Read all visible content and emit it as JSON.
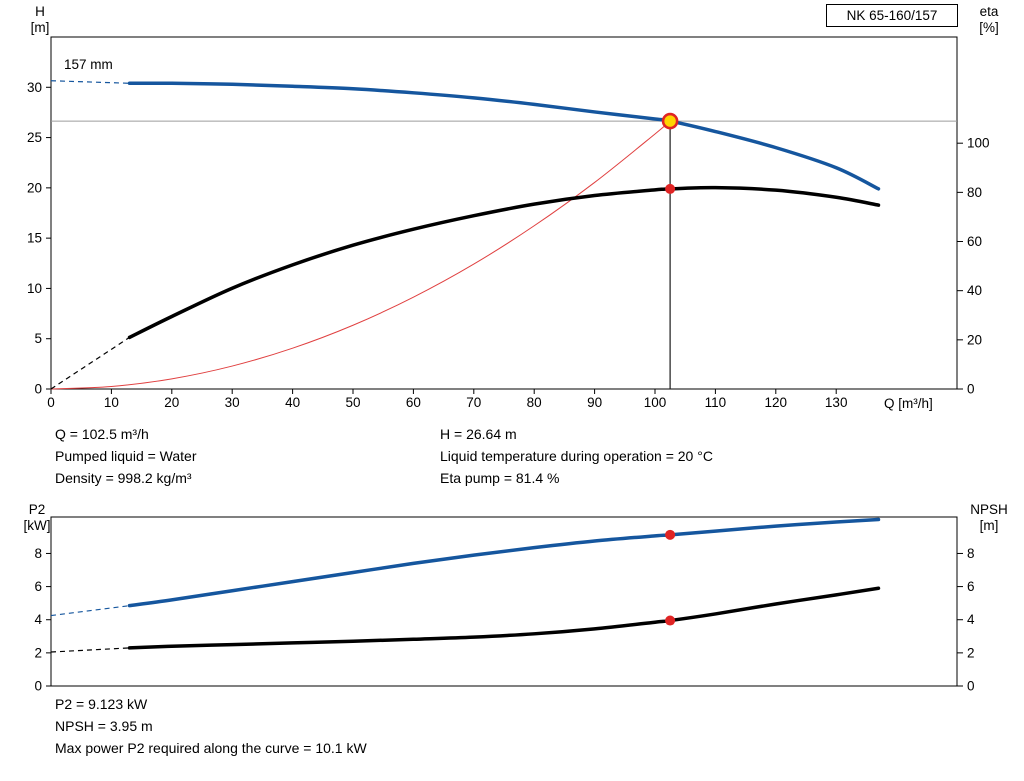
{
  "colors": {
    "pump_blue": "#15569e",
    "curve_black": "#000000",
    "system_red": "#e04040",
    "duty_fill": "#ffd400",
    "duty_ring": "#e02424",
    "dot_red": "#e02424",
    "guide_gray": "#9c9c9c",
    "guide_dark": "#1a1a1a"
  },
  "chart_data": [
    {
      "type": "line",
      "title": "NK 65-160/157",
      "curve_label": "157 mm",
      "x_label": "Q [m³/h]",
      "corner_left": [
        "H",
        "[m]"
      ],
      "corner_right": [
        "eta",
        "[%]"
      ],
      "x_axis": {
        "range": [
          0,
          150
        ],
        "ticks": [
          0,
          10,
          20,
          30,
          40,
          50,
          60,
          70,
          80,
          90,
          100,
          110,
          120,
          130
        ]
      },
      "y_left": {
        "label": "H [m]",
        "range": [
          0,
          35
        ],
        "ticks": [
          0,
          5,
          10,
          15,
          20,
          25,
          30
        ]
      },
      "y_right": {
        "label": "eta [%]",
        "range": [
          0,
          143.2
        ],
        "ticks": [
          0,
          20,
          40,
          60,
          80,
          100
        ]
      },
      "series": [
        {
          "name": "system-curve",
          "axis": "left",
          "color": "#e04040",
          "width": 1,
          "points": [
            [
              0,
              0
            ],
            [
              10,
              0.25
            ],
            [
              20,
              1.01
            ],
            [
              30,
              2.28
            ],
            [
              40,
              4.06
            ],
            [
              50,
              6.34
            ],
            [
              60,
              9.13
            ],
            [
              70,
              12.42
            ],
            [
              80,
              16.23
            ],
            [
              90,
              20.54
            ],
            [
              100,
              25.36
            ],
            [
              102.5,
              26.64
            ]
          ]
        },
        {
          "name": "efficiency-curve",
          "axis": "right",
          "color": "#000000",
          "width": 3.5,
          "dashed_lead": [
            [
              0,
              0
            ],
            [
              13,
              21
            ]
          ],
          "points": [
            [
              13,
              21
            ],
            [
              20,
              29.5
            ],
            [
              30,
              41
            ],
            [
              40,
              50.5
            ],
            [
              50,
              58.5
            ],
            [
              60,
              65
            ],
            [
              70,
              70.5
            ],
            [
              80,
              75.2
            ],
            [
              90,
              78.7
            ],
            [
              100,
              81.0
            ],
            [
              102.5,
              81.4
            ],
            [
              110,
              81.9
            ],
            [
              120,
              80.9
            ],
            [
              130,
              78.0
            ],
            [
              137,
              74.8
            ]
          ]
        },
        {
          "name": "pump-curve-157mm",
          "axis": "left",
          "color": "#15569e",
          "width": 3.5,
          "dashed_lead": [
            [
              0,
              30.65
            ],
            [
              13,
              30.4
            ]
          ],
          "points": [
            [
              13,
              30.4
            ],
            [
              20,
              30.4
            ],
            [
              30,
              30.3
            ],
            [
              40,
              30.1
            ],
            [
              50,
              29.85
            ],
            [
              60,
              29.45
            ],
            [
              70,
              28.95
            ],
            [
              80,
              28.3
            ],
            [
              90,
              27.55
            ],
            [
              100,
              26.85
            ],
            [
              102.5,
              26.64
            ],
            [
              110,
              25.6
            ],
            [
              120,
              24.0
            ],
            [
              130,
              22.0
            ],
            [
              137,
              19.9
            ]
          ]
        }
      ],
      "guides": {
        "v_x": 102.5,
        "v_top": 26.64,
        "h_y": 26.64,
        "h_axis": "left"
      },
      "markers": [
        {
          "name": "duty-point-marker",
          "axis": "left",
          "x": 102.5,
          "y": 26.64,
          "style": "duty"
        },
        {
          "name": "eta-duty-marker",
          "axis": "right",
          "x": 102.5,
          "y": 81.4,
          "style": "dot"
        }
      ],
      "duty_point": {
        "q_m3h": 102.5,
        "h_m": 26.64,
        "eta_pct": 81.4
      }
    },
    {
      "type": "line",
      "corner_left": [
        "P2",
        "[kW]"
      ],
      "corner_right": [
        "NPSH",
        "[m]"
      ],
      "x_axis": {
        "range": [
          0,
          150
        ],
        "ticks": []
      },
      "y_left": {
        "label": "P2 [kW]",
        "range": [
          0,
          10.2
        ],
        "ticks": [
          0,
          2,
          4,
          6,
          8
        ]
      },
      "y_right": {
        "label": "NPSH [m]",
        "range": [
          0,
          10.2
        ],
        "ticks": [
          0,
          2,
          4,
          6,
          8
        ]
      },
      "series": [
        {
          "name": "p2-curve",
          "axis": "left",
          "color": "#15569e",
          "width": 3.5,
          "dashed_lead": [
            [
              0,
              4.25
            ],
            [
              13,
              4.85
            ]
          ],
          "points": [
            [
              13,
              4.85
            ],
            [
              20,
              5.2
            ],
            [
              30,
              5.75
            ],
            [
              40,
              6.3
            ],
            [
              50,
              6.85
            ],
            [
              60,
              7.4
            ],
            [
              70,
              7.9
            ],
            [
              80,
              8.35
            ],
            [
              90,
              8.75
            ],
            [
              100,
              9.06
            ],
            [
              102.5,
              9.123
            ],
            [
              110,
              9.35
            ],
            [
              120,
              9.65
            ],
            [
              130,
              9.9
            ],
            [
              137,
              10.05
            ]
          ]
        },
        {
          "name": "npsh-curve",
          "axis": "right",
          "color": "#000000",
          "width": 3.5,
          "dashed_lead": [
            [
              0,
              2.05
            ],
            [
              13,
              2.3
            ]
          ],
          "points": [
            [
              13,
              2.3
            ],
            [
              20,
              2.4
            ],
            [
              30,
              2.5
            ],
            [
              40,
              2.6
            ],
            [
              50,
              2.7
            ],
            [
              60,
              2.82
            ],
            [
              70,
              2.95
            ],
            [
              80,
              3.15
            ],
            [
              90,
              3.45
            ],
            [
              100,
              3.85
            ],
            [
              102.5,
              3.95
            ],
            [
              110,
              4.35
            ],
            [
              120,
              4.95
            ],
            [
              130,
              5.5
            ],
            [
              137,
              5.9
            ]
          ]
        }
      ],
      "markers": [
        {
          "name": "p2-duty-marker",
          "axis": "left",
          "x": 102.5,
          "y": 9.123,
          "style": "dot"
        },
        {
          "name": "npsh-duty-marker",
          "axis": "right",
          "x": 102.5,
          "y": 3.95,
          "style": "dot"
        }
      ],
      "duty_point": {
        "p2_kw": 9.123,
        "npsh_m": 3.95
      }
    }
  ],
  "info_top": {
    "left": [
      "Q = 102.5 m³/h",
      "Pumped liquid = Water",
      "Density = 998.2 kg/m³"
    ],
    "right": [
      "H = 26.64 m",
      "Liquid temperature during operation = 20 °C",
      "Eta pump = 81.4 %"
    ]
  },
  "info_bottom": [
    "P2 = 9.123 kW",
    "NPSH = 3.95 m",
    "Max power P2 required along the curve = 10.1 kW"
  ]
}
